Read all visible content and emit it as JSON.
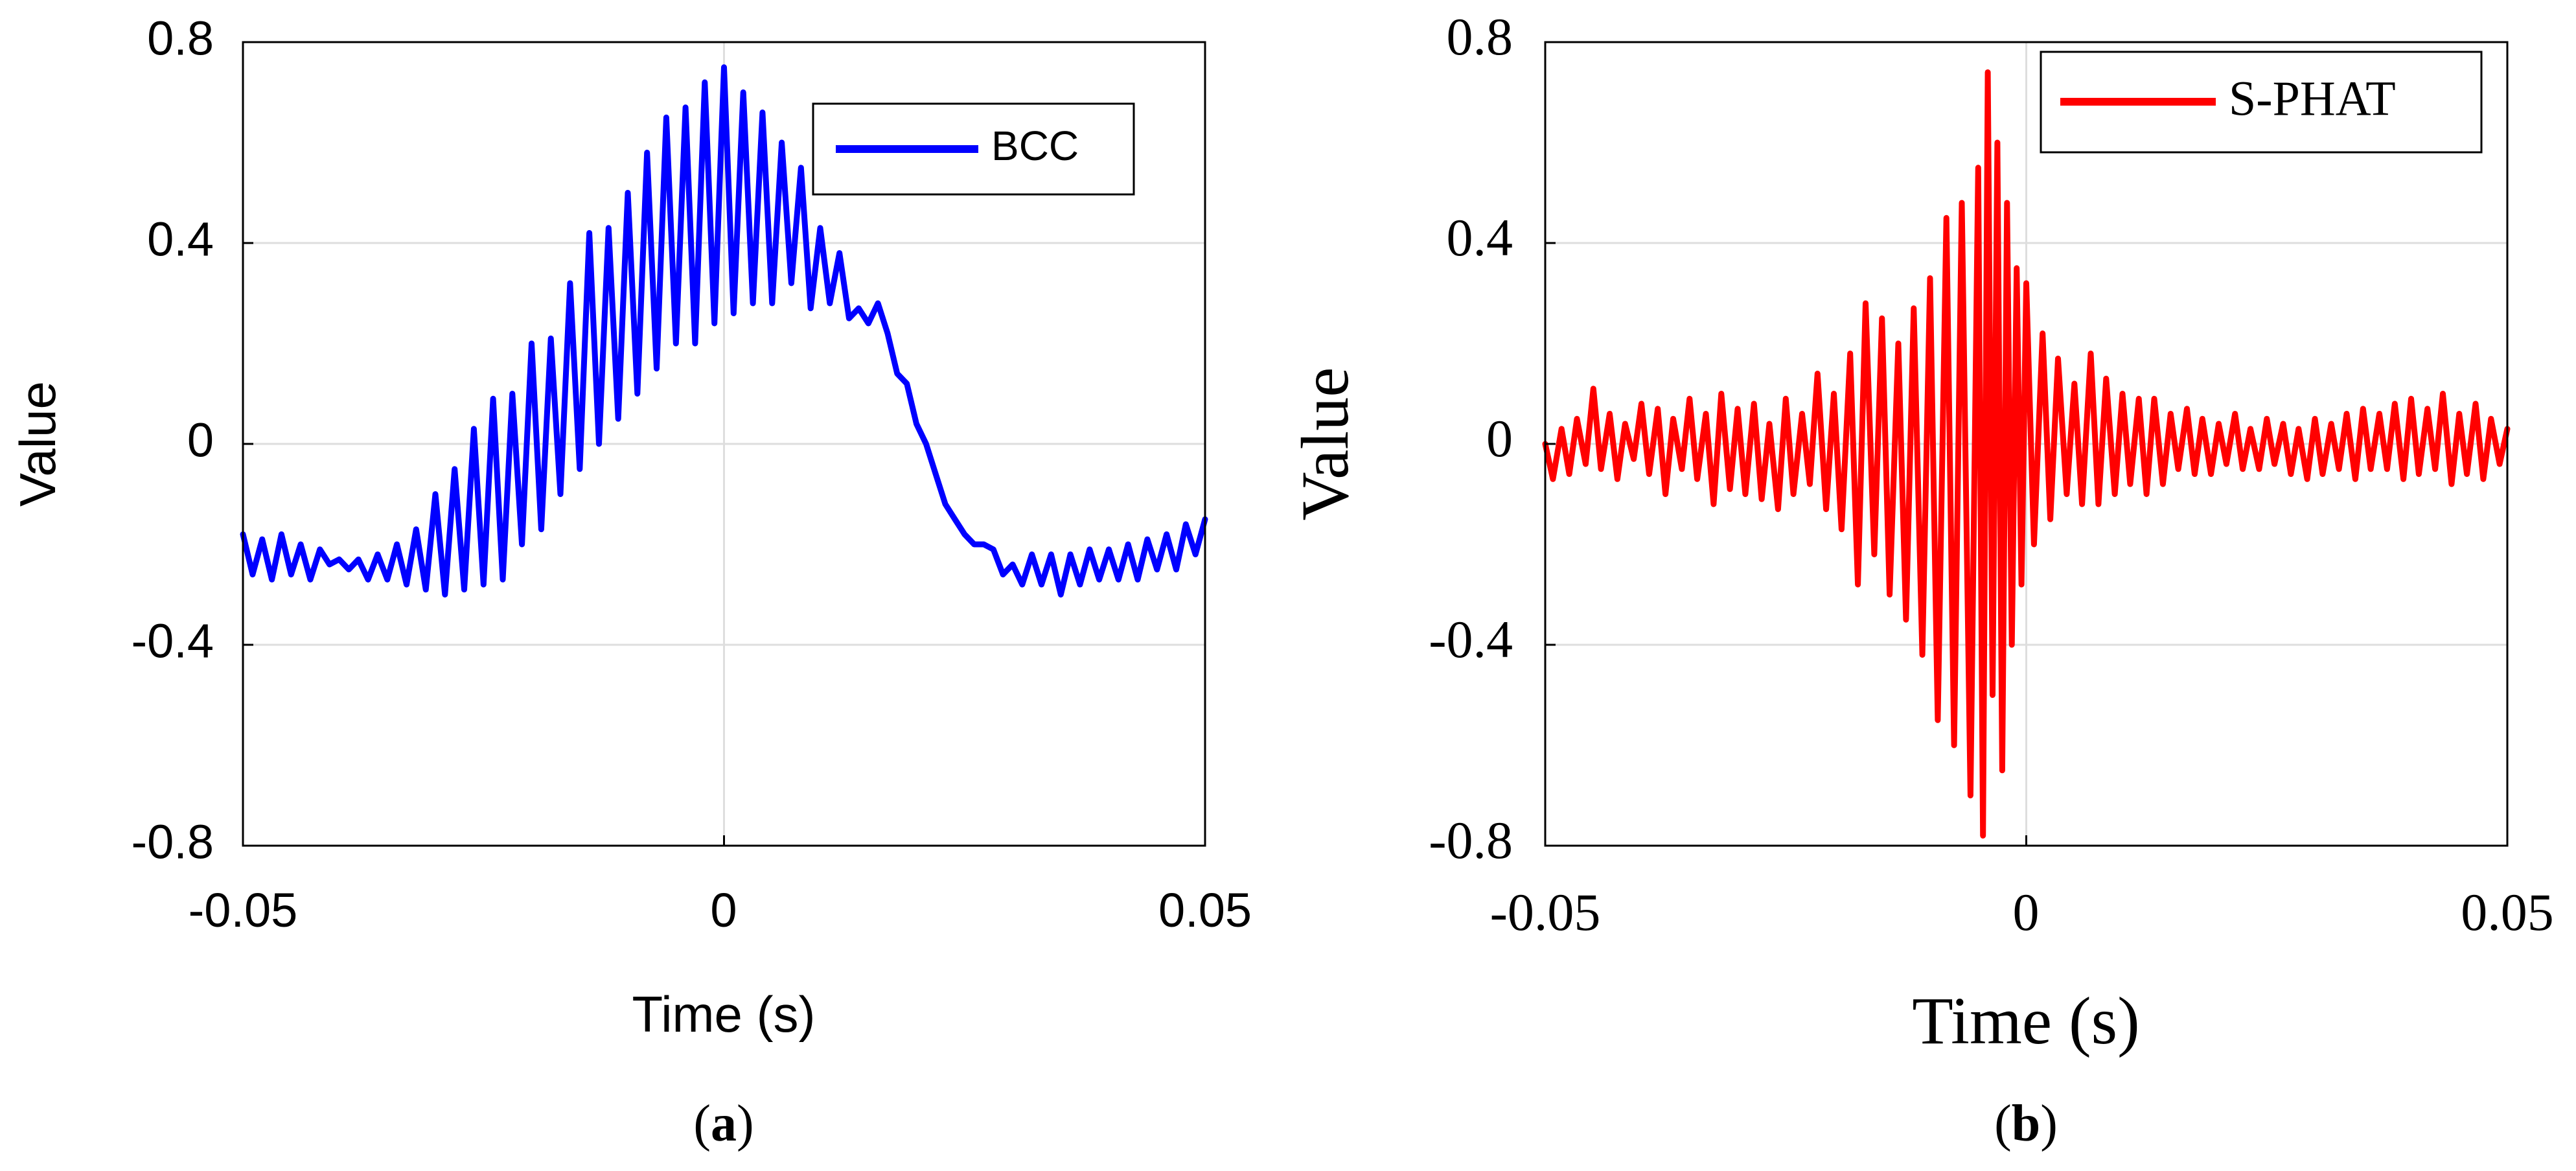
{
  "chart_data": [
    {
      "type": "line",
      "panel_label": "a",
      "xlabel": "Time (s)",
      "ylabel": "Value",
      "xlim": [
        -0.05,
        0.05
      ],
      "ylim": [
        -0.8,
        0.8
      ],
      "xticks": [
        -0.05,
        0,
        0.05
      ],
      "xtick_labels": [
        "-0.05",
        "0",
        "0.05"
      ],
      "yticks": [
        -0.8,
        -0.4,
        0,
        0.4,
        0.8
      ],
      "ytick_labels": [
        "-0.8",
        "-0.4",
        "0",
        "0.4",
        "0.8"
      ],
      "grid": true,
      "legend_position": "top-right",
      "series": [
        {
          "name": "BCC",
          "color": "#0000ff",
          "x": [
            -0.05,
            -0.049,
            -0.048,
            -0.047,
            -0.046,
            -0.045,
            -0.044,
            -0.043,
            -0.042,
            -0.041,
            -0.04,
            -0.039,
            -0.038,
            -0.037,
            -0.036,
            -0.035,
            -0.034,
            -0.033,
            -0.032,
            -0.031,
            -0.03,
            -0.029,
            -0.028,
            -0.027,
            -0.026,
            -0.025,
            -0.024,
            -0.023,
            -0.022,
            -0.021,
            -0.02,
            -0.019,
            -0.018,
            -0.017,
            -0.016,
            -0.015,
            -0.014,
            -0.013,
            -0.012,
            -0.011,
            -0.01,
            -0.009,
            -0.008,
            -0.007,
            -0.006,
            -0.005,
            -0.004,
            -0.003,
            -0.002,
            -0.001,
            0,
            0.001,
            0.002,
            0.003,
            0.004,
            0.005,
            0.006,
            0.007,
            0.008,
            0.009,
            0.01,
            0.011,
            0.012,
            0.013,
            0.014,
            0.015,
            0.016,
            0.017,
            0.018,
            0.019,
            0.02,
            0.021,
            0.022,
            0.023,
            0.024,
            0.025,
            0.026,
            0.027,
            0.028,
            0.029,
            0.03,
            0.031,
            0.032,
            0.033,
            0.034,
            0.035,
            0.036,
            0.037,
            0.038,
            0.039,
            0.04,
            0.041,
            0.042,
            0.043,
            0.044,
            0.045,
            0.046,
            0.047,
            0.048,
            0.049,
            0.05
          ],
          "y": [
            -0.18,
            -0.26,
            -0.19,
            -0.27,
            -0.18,
            -0.26,
            -0.2,
            -0.27,
            -0.21,
            -0.24,
            -0.23,
            -0.25,
            -0.23,
            -0.27,
            -0.22,
            -0.27,
            -0.2,
            -0.28,
            -0.17,
            -0.29,
            -0.1,
            -0.3,
            -0.05,
            -0.29,
            0.03,
            -0.28,
            0.09,
            -0.27,
            0.1,
            -0.2,
            0.2,
            -0.17,
            0.21,
            -0.1,
            0.32,
            -0.05,
            0.42,
            0,
            0.43,
            0.05,
            0.5,
            0.1,
            0.58,
            0.15,
            0.65,
            0.2,
            0.67,
            0.2,
            0.72,
            0.24,
            0.75,
            0.26,
            0.7,
            0.28,
            0.66,
            0.28,
            0.6,
            0.32,
            0.55,
            0.27,
            0.43,
            0.28,
            0.38,
            0.25,
            0.27,
            0.24,
            0.28,
            0.22,
            0.14,
            0.12,
            0.04,
            0,
            -0.06,
            -0.12,
            -0.15,
            -0.18,
            -0.2,
            -0.2,
            -0.21,
            -0.26,
            -0.24,
            -0.28,
            -0.22,
            -0.28,
            -0.22,
            -0.3,
            -0.22,
            -0.28,
            -0.21,
            -0.27,
            -0.21,
            -0.27,
            -0.2,
            -0.27,
            -0.19,
            -0.25,
            -0.18,
            -0.25,
            -0.16,
            -0.22,
            -0.15
          ]
        }
      ]
    },
    {
      "type": "line",
      "panel_label": "b",
      "xlabel": "Time (s)",
      "ylabel": "Value",
      "xlim": [
        -0.05,
        0.05
      ],
      "ylim": [
        -0.8,
        0.8
      ],
      "xticks": [
        -0.05,
        0,
        0.05
      ],
      "xtick_labels": [
        "-0.05",
        "0",
        "0.05"
      ],
      "yticks": [
        -0.8,
        -0.4,
        0,
        0.4,
        0.8
      ],
      "ytick_labels": [
        "-0.8",
        "-0.4",
        "0",
        "0.4",
        "0.8"
      ],
      "grid": true,
      "legend_position": "top-right",
      "series": [
        {
          "name": "S-PHAT",
          "color": "#ff0000",
          "x": [
            -0.05,
            -0.0492,
            -0.0483,
            -0.0475,
            -0.0467,
            -0.0458,
            -0.045,
            -0.0442,
            -0.0433,
            -0.0425,
            -0.0417,
            -0.0408,
            -0.04,
            -0.0392,
            -0.0383,
            -0.0375,
            -0.0367,
            -0.0358,
            -0.035,
            -0.0342,
            -0.0333,
            -0.0325,
            -0.0317,
            -0.0308,
            -0.03,
            -0.0292,
            -0.0283,
            -0.0275,
            -0.0267,
            -0.0258,
            -0.025,
            -0.0242,
            -0.0233,
            -0.0225,
            -0.0217,
            -0.0208,
            -0.02,
            -0.0192,
            -0.0183,
            -0.0175,
            -0.0167,
            -0.0158,
            -0.015,
            -0.0142,
            -0.0133,
            -0.0125,
            -0.0117,
            -0.0108,
            -0.01,
            -0.0092,
            -0.0083,
            -0.0075,
            -0.0067,
            -0.0058,
            -0.005,
            -0.0045,
            -0.004,
            -0.0035,
            -0.003,
            -0.0025,
            -0.002,
            -0.0015,
            -0.001,
            -0.0005,
            0,
            0.0008,
            0.0017,
            0.0025,
            0.0033,
            0.0042,
            0.005,
            0.0058,
            0.0067,
            0.0075,
            0.0083,
            0.0092,
            0.01,
            0.0108,
            0.0117,
            0.0125,
            0.0133,
            0.0142,
            0.015,
            0.0158,
            0.0167,
            0.0175,
            0.0183,
            0.0192,
            0.02,
            0.0208,
            0.0217,
            0.0225,
            0.0233,
            0.0242,
            0.025,
            0.0258,
            0.0267,
            0.0275,
            0.0283,
            0.0292,
            0.03,
            0.0308,
            0.0317,
            0.0325,
            0.0333,
            0.0342,
            0.035,
            0.0358,
            0.0367,
            0.0375,
            0.0383,
            0.0392,
            0.04,
            0.0408,
            0.0417,
            0.0425,
            0.0433,
            0.0442,
            0.045,
            0.0458,
            0.0467,
            0.0475,
            0.0483,
            0.0492,
            0.05
          ],
          "y": [
            0,
            -0.07,
            0.03,
            -0.06,
            0.05,
            -0.04,
            0.11,
            -0.05,
            0.06,
            -0.07,
            0.04,
            -0.03,
            0.08,
            -0.06,
            0.07,
            -0.1,
            0.05,
            -0.05,
            0.09,
            -0.07,
            0.06,
            -0.12,
            0.1,
            -0.09,
            0.07,
            -0.1,
            0.08,
            -0.11,
            0.04,
            -0.13,
            0.09,
            -0.1,
            0.06,
            -0.08,
            0.14,
            -0.13,
            0.1,
            -0.17,
            0.18,
            -0.28,
            0.28,
            -0.22,
            0.25,
            -0.3,
            0.2,
            -0.35,
            0.27,
            -0.42,
            0.33,
            -0.55,
            0.45,
            -0.6,
            0.48,
            -0.7,
            0.55,
            -0.78,
            0.74,
            -0.5,
            0.6,
            -0.65,
            0.48,
            -0.4,
            0.35,
            -0.28,
            0.32,
            -0.2,
            0.22,
            -0.15,
            0.17,
            -0.1,
            0.12,
            -0.12,
            0.18,
            -0.12,
            0.13,
            -0.1,
            0.1,
            -0.08,
            0.09,
            -0.1,
            0.09,
            -0.08,
            0.06,
            -0.05,
            0.07,
            -0.06,
            0.05,
            -0.06,
            0.04,
            -0.04,
            0.06,
            -0.05,
            0.03,
            -0.05,
            0.05,
            -0.04,
            0.04,
            -0.06,
            0.03,
            -0.07,
            0.05,
            -0.06,
            0.04,
            -0.05,
            0.06,
            -0.07,
            0.07,
            -0.05,
            0.06,
            -0.05,
            0.08,
            -0.07,
            0.09,
            -0.06,
            0.07,
            -0.05,
            0.1,
            -0.08,
            0.06,
            -0.06,
            0.08,
            -0.07,
            0.05,
            -0.04,
            0.03
          ]
        }
      ]
    }
  ]
}
